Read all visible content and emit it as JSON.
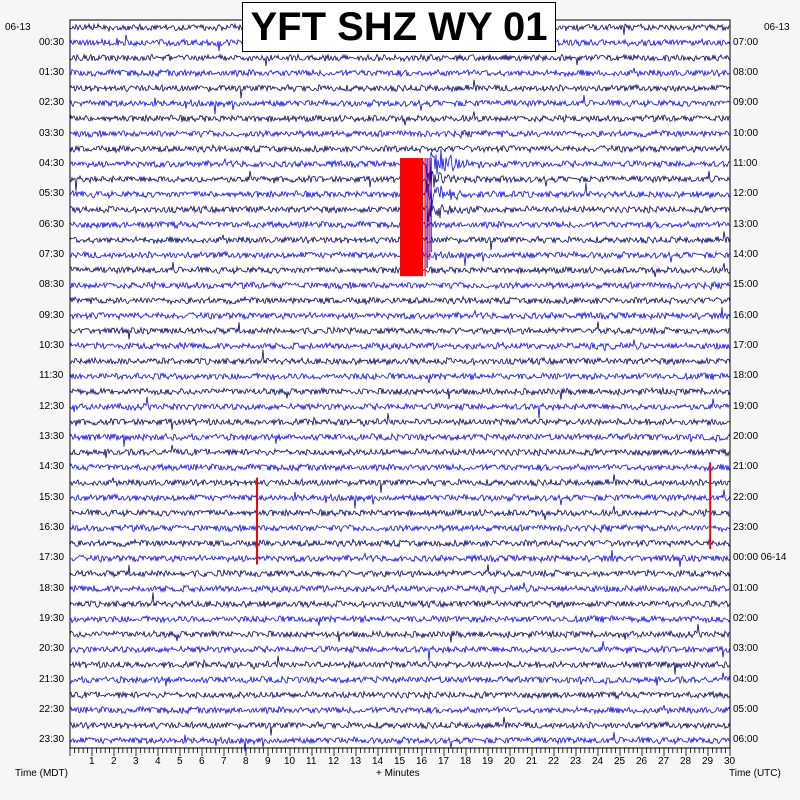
{
  "title": "YFT SHZ WY 01",
  "date_left": "06-13",
  "date_right": "06-13",
  "left_axis_label": "Time (MDT)",
  "center_axis_label": "+ Minutes",
  "right_axis_label": "Time (UTC)",
  "colors": {
    "trace_dark": "#0a0a66",
    "trace_light": "#1010ee",
    "trace_red": "#ff0000",
    "background": "#f6f6f6",
    "plot_background": "#ffffff"
  },
  "chart_data": {
    "type": "line",
    "title": "YFT SHZ WY 01",
    "xlabel": "+ Minutes",
    "ylabel_left": "Time (MDT)",
    "ylabel_right": "Time (UTC)",
    "xlim": [
      0,
      30
    ],
    "x_ticks": [
      "1",
      "2",
      "3",
      "4",
      "5",
      "6",
      "7",
      "8",
      "9",
      "10",
      "11",
      "12",
      "13",
      "14",
      "15",
      "16",
      "17",
      "18",
      "19",
      "20",
      "21",
      "22",
      "23",
      "24",
      "25",
      "26",
      "27",
      "28",
      "29",
      "30"
    ],
    "y_ticks_left": [
      "00:30",
      "01:30",
      "02:30",
      "03:30",
      "04:30",
      "05:30",
      "06:30",
      "07:30",
      "08:30",
      "09:30",
      "10:30",
      "11:30",
      "12:30",
      "13:30",
      "14:30",
      "15:30",
      "16:30",
      "17:30",
      "18:30",
      "19:30",
      "20:30",
      "21:30",
      "22:30",
      "23:30"
    ],
    "y_ticks_right": [
      "07:00",
      "08:00",
      "09:00",
      "10:00",
      "11:00",
      "12:00",
      "13:00",
      "14:00",
      "15:00",
      "16:00",
      "17:00",
      "18:00",
      "19:00",
      "20:00",
      "21:00",
      "22:00",
      "23:00",
      "00:00 06-14",
      "01:00",
      "02:00",
      "03:00",
      "04:00",
      "05:00",
      "06:00"
    ],
    "trace_count": 48,
    "trace_minutes": 30,
    "color_cycle": [
      "dark",
      "light",
      "dark",
      "light"
    ],
    "events": [
      {
        "type": "clipped",
        "start_min": 15.0,
        "end_min": 16.05,
        "first_trace": 9,
        "last_trace": 16,
        "color": "red"
      },
      {
        "type": "earthquake",
        "start_min": 16.2,
        "duration_min": 4.0,
        "first_trace": 9,
        "amplitude_traces": 2
      },
      {
        "type": "spike",
        "minute": 8.5,
        "first_trace": 30,
        "last_trace": 35,
        "color": "red"
      },
      {
        "type": "spike",
        "minute": 29.1,
        "first_trace": 29,
        "last_trace": 34,
        "color": "red"
      }
    ]
  }
}
